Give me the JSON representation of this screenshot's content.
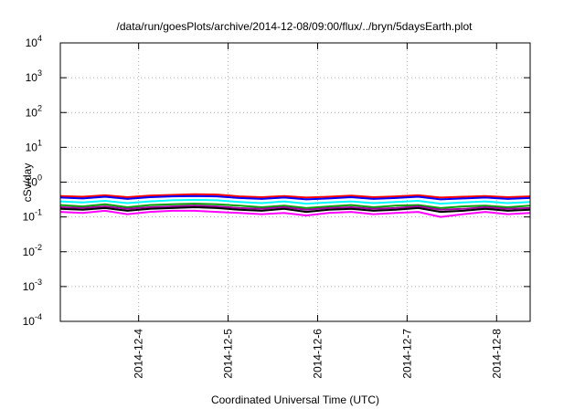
{
  "chart_data": {
    "type": "line",
    "title": "/data/run/goesPlots/archive/2014-12-08/09:00/flux/../bryn/5daysEarth.plot",
    "xlabel": "Coordinated Universal Time (UTC)",
    "ylabel": "cSv/day",
    "yscale": "log",
    "ylim": [
      0.0001,
      10000
    ],
    "xlim": [
      "2014-12-03T03:00",
      "2014-12-08T09:00"
    ],
    "grid": true,
    "y_ticks": [
      {
        "base": "10",
        "exp": "-4",
        "value": 0.0001
      },
      {
        "base": "10",
        "exp": "-3",
        "value": 0.001
      },
      {
        "base": "10",
        "exp": "-2",
        "value": 0.01
      },
      {
        "base": "10",
        "exp": "-1",
        "value": 0.1
      },
      {
        "base": "10",
        "exp": "0",
        "value": 1
      },
      {
        "base": "10",
        "exp": "1",
        "value": 10
      },
      {
        "base": "10",
        "exp": "2",
        "value": 100
      },
      {
        "base": "10",
        "exp": "3",
        "value": 1000
      },
      {
        "base": "10",
        "exp": "4",
        "value": 10000
      }
    ],
    "x_ticks": [
      {
        "label": "2014-12-4",
        "value": "2014-12-04T00:00"
      },
      {
        "label": "2014-12-5",
        "value": "2014-12-05T00:00"
      },
      {
        "label": "2014-12-6",
        "value": "2014-12-06T00:00"
      },
      {
        "label": "2014-12-7",
        "value": "2014-12-07T00:00"
      },
      {
        "label": "2014-12-8",
        "value": "2014-12-08T00:00"
      }
    ],
    "x": [
      "2014-12-03T03:00",
      "2014-12-03T09:00",
      "2014-12-03T15:00",
      "2014-12-03T21:00",
      "2014-12-04T03:00",
      "2014-12-04T09:00",
      "2014-12-04T15:00",
      "2014-12-04T21:00",
      "2014-12-05T03:00",
      "2014-12-05T09:00",
      "2014-12-05T15:00",
      "2014-12-05T21:00",
      "2014-12-06T03:00",
      "2014-12-06T09:00",
      "2014-12-06T15:00",
      "2014-12-06T21:00",
      "2014-12-07T03:00",
      "2014-12-07T09:00",
      "2014-12-07T15:00",
      "2014-12-07T21:00",
      "2014-12-08T03:00",
      "2014-12-08T09:00"
    ],
    "series": [
      {
        "color": "#ff0000",
        "values": [
          0.4,
          0.38,
          0.42,
          0.37,
          0.41,
          0.43,
          0.45,
          0.44,
          0.39,
          0.37,
          0.4,
          0.36,
          0.38,
          0.41,
          0.37,
          0.39,
          0.42,
          0.36,
          0.38,
          0.4,
          0.37,
          0.39
        ]
      },
      {
        "color": "#0000ff",
        "values": [
          0.36,
          0.34,
          0.38,
          0.33,
          0.37,
          0.39,
          0.4,
          0.39,
          0.35,
          0.33,
          0.36,
          0.32,
          0.34,
          0.37,
          0.33,
          0.35,
          0.38,
          0.32,
          0.34,
          0.36,
          0.33,
          0.35
        ]
      },
      {
        "color": "#00ffff",
        "values": [
          0.28,
          0.26,
          0.29,
          0.25,
          0.28,
          0.3,
          0.31,
          0.3,
          0.27,
          0.25,
          0.28,
          0.24,
          0.26,
          0.28,
          0.25,
          0.27,
          0.29,
          0.24,
          0.26,
          0.28,
          0.25,
          0.27
        ]
      },
      {
        "color": "#00a000",
        "values": [
          0.22,
          0.2,
          0.23,
          0.19,
          0.22,
          0.23,
          0.24,
          0.23,
          0.21,
          0.19,
          0.21,
          0.18,
          0.2,
          0.22,
          0.19,
          0.21,
          0.22,
          0.18,
          0.2,
          0.21,
          0.19,
          0.21
        ]
      },
      {
        "color": "#a000a0",
        "values": [
          0.19,
          0.18,
          0.2,
          0.17,
          0.19,
          0.2,
          0.21,
          0.2,
          0.18,
          0.17,
          0.19,
          0.16,
          0.18,
          0.19,
          0.17,
          0.18,
          0.2,
          0.16,
          0.17,
          0.19,
          0.17,
          0.18
        ]
      },
      {
        "color": "#000000",
        "values": [
          0.17,
          0.16,
          0.18,
          0.15,
          0.17,
          0.18,
          0.19,
          0.18,
          0.16,
          0.15,
          0.17,
          0.14,
          0.16,
          0.17,
          0.15,
          0.16,
          0.18,
          0.14,
          0.15,
          0.17,
          0.15,
          0.16
        ]
      },
      {
        "color": "#ff00ff",
        "values": [
          0.14,
          0.13,
          0.15,
          0.12,
          0.14,
          0.15,
          0.15,
          0.14,
          0.13,
          0.12,
          0.13,
          0.11,
          0.13,
          0.14,
          0.12,
          0.13,
          0.14,
          0.1,
          0.12,
          0.14,
          0.12,
          0.13
        ]
      }
    ]
  }
}
